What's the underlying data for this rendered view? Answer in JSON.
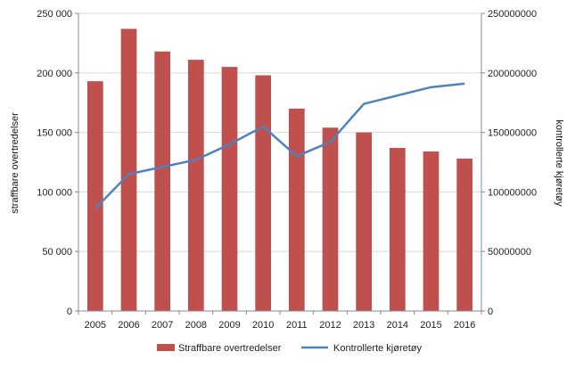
{
  "chart_data": {
    "type": "bar+line",
    "categories": [
      "2005",
      "2006",
      "2007",
      "2008",
      "2009",
      "2010",
      "2011",
      "2012",
      "2013",
      "2014",
      "2015",
      "2016"
    ],
    "series": [
      {
        "name": "Straffbare overtredelser",
        "type": "bar",
        "axis": "left",
        "color": "#c0504d",
        "values": [
          193000,
          237000,
          218000,
          211000,
          205000,
          198000,
          170000,
          154000,
          150000,
          137000,
          134000,
          128000
        ]
      },
      {
        "name": "Kontrollerte kjøretøy",
        "type": "line",
        "axis": "right",
        "color": "#4f81bd",
        "values": [
          86000000,
          115000000,
          121000000,
          127000000,
          140000000,
          155000000,
          130000000,
          142000000,
          174000000,
          181000000,
          188000000,
          191000000
        ]
      }
    ],
    "ylabel_left": "straffbare overtredelser",
    "ylabel_right": "kontrollerte kjøretøy",
    "ylim_left": [
      0,
      250000
    ],
    "ylim_right": [
      0,
      250000000
    ],
    "yticks_left": [
      "0",
      "50 000",
      "100 000",
      "150 000",
      "200 000",
      "250 000"
    ],
    "yticks_right": [
      "0",
      "50000000",
      "100000000",
      "150000000",
      "200000000",
      "250000000"
    ],
    "grid": true,
    "legend_position": "bottom"
  }
}
